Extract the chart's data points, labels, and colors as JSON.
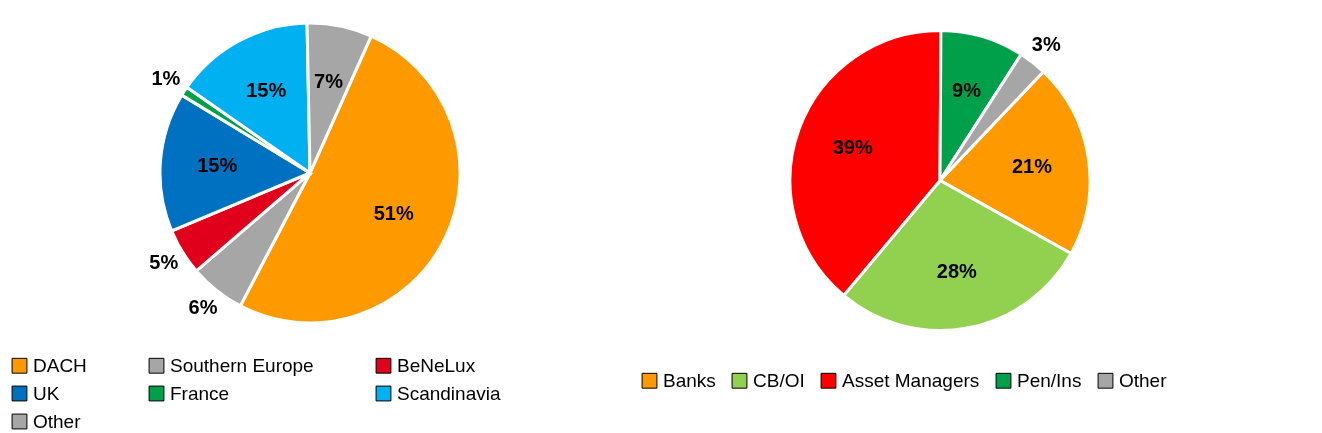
{
  "chart_data": [
    {
      "type": "pie",
      "categories": [
        "DACH",
        "Southern Europe",
        "BeNeLux",
        "UK",
        "France",
        "Scandinavia",
        "Other"
      ],
      "values": [
        51,
        6,
        5,
        15,
        1,
        15,
        7
      ],
      "colors": [
        "#ff9900",
        "#a6a6a6",
        "#e0001b",
        "#0070c0",
        "#00a04a",
        "#00b0f0",
        "#a6a6a6"
      ],
      "value_labels": [
        "51%",
        "6%",
        "5%",
        "15%",
        "1%",
        "15%",
        "7%"
      ],
      "legend": "bottom"
    },
    {
      "type": "pie",
      "categories": [
        "Banks",
        "CB/OI",
        "Asset Managers",
        "Pen/Ins",
        "Other"
      ],
      "values": [
        21,
        28,
        39,
        9,
        3
      ],
      "colors": [
        "#ff9900",
        "#92d050",
        "#ff0000",
        "#00a04a",
        "#a6a6a6"
      ],
      "value_labels": [
        "21%",
        "28%",
        "39%",
        "9%",
        "3%"
      ],
      "legend": "bottom"
    }
  ]
}
